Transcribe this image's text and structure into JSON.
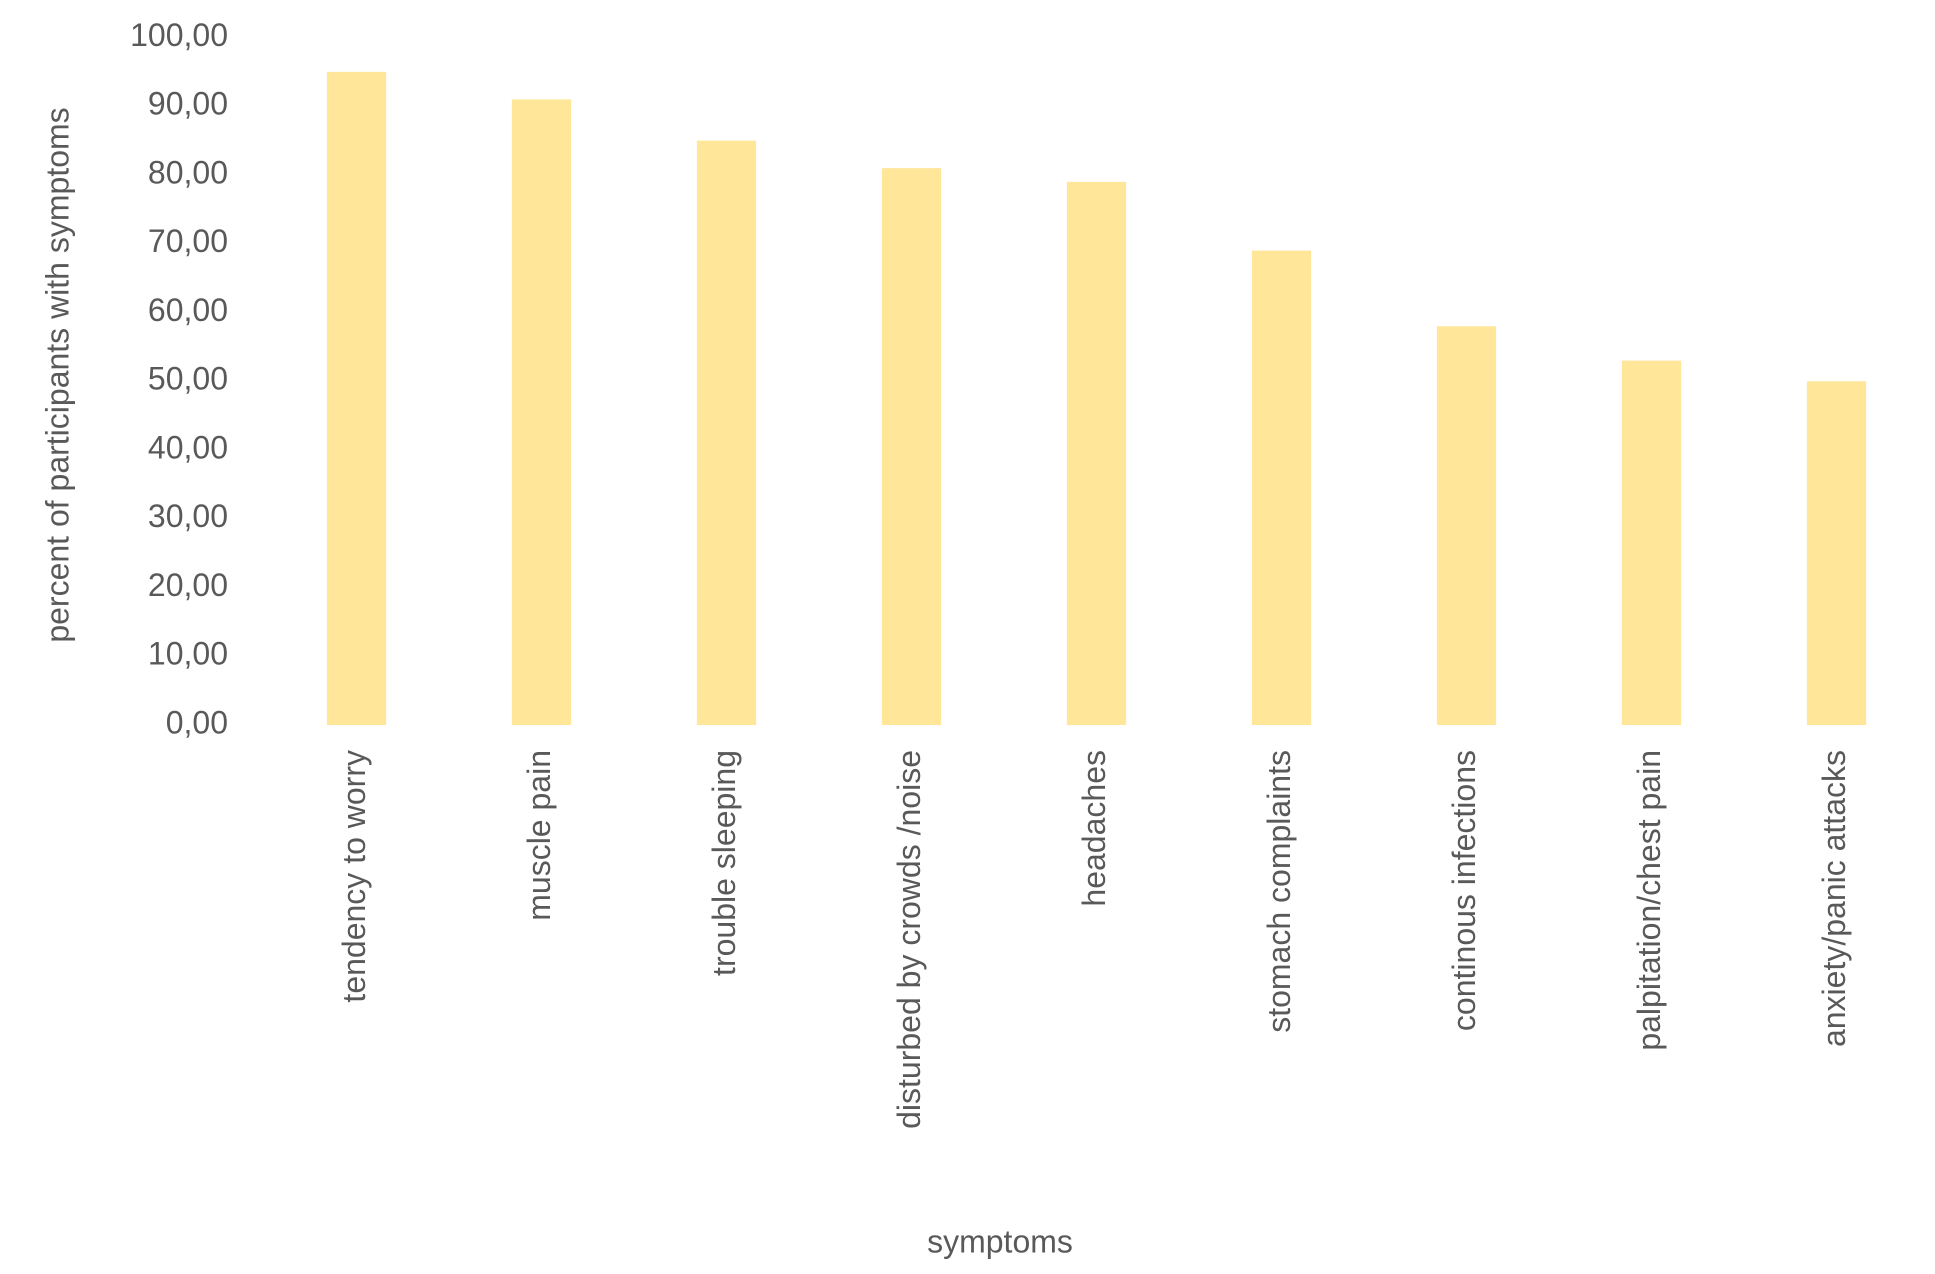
{
  "chart_data": {
    "type": "bar",
    "x_label": "symptoms",
    "y_label": "percent of participants with symptoms",
    "categories": [
      "tendency to worry",
      "muscle pain",
      "trouble sleeping",
      "disturbed by crowds /noise",
      "headaches",
      "stomach complaints",
      "continous infections",
      "palpitation/chest pain",
      "anxiety/panic attacks"
    ],
    "values": [
      95,
      91,
      85,
      81,
      79,
      69,
      58,
      53,
      50
    ],
    "color": "#ffe699",
    "ylim": [
      0,
      100
    ],
    "yticks": [
      {
        "value": 0,
        "label": "0,00"
      },
      {
        "value": 10,
        "label": "10,00"
      },
      {
        "value": 20,
        "label": "20,00"
      },
      {
        "value": 30,
        "label": "30,00"
      },
      {
        "value": 40,
        "label": "40,00"
      },
      {
        "value": 50,
        "label": "50,00"
      },
      {
        "value": 60,
        "label": "60,00"
      },
      {
        "value": 70,
        "label": "70,00"
      },
      {
        "value": 80,
        "label": "80,00"
      },
      {
        "value": 90,
        "label": "90,00"
      },
      {
        "value": 100,
        "label": "100,00"
      }
    ],
    "grid": false
  }
}
